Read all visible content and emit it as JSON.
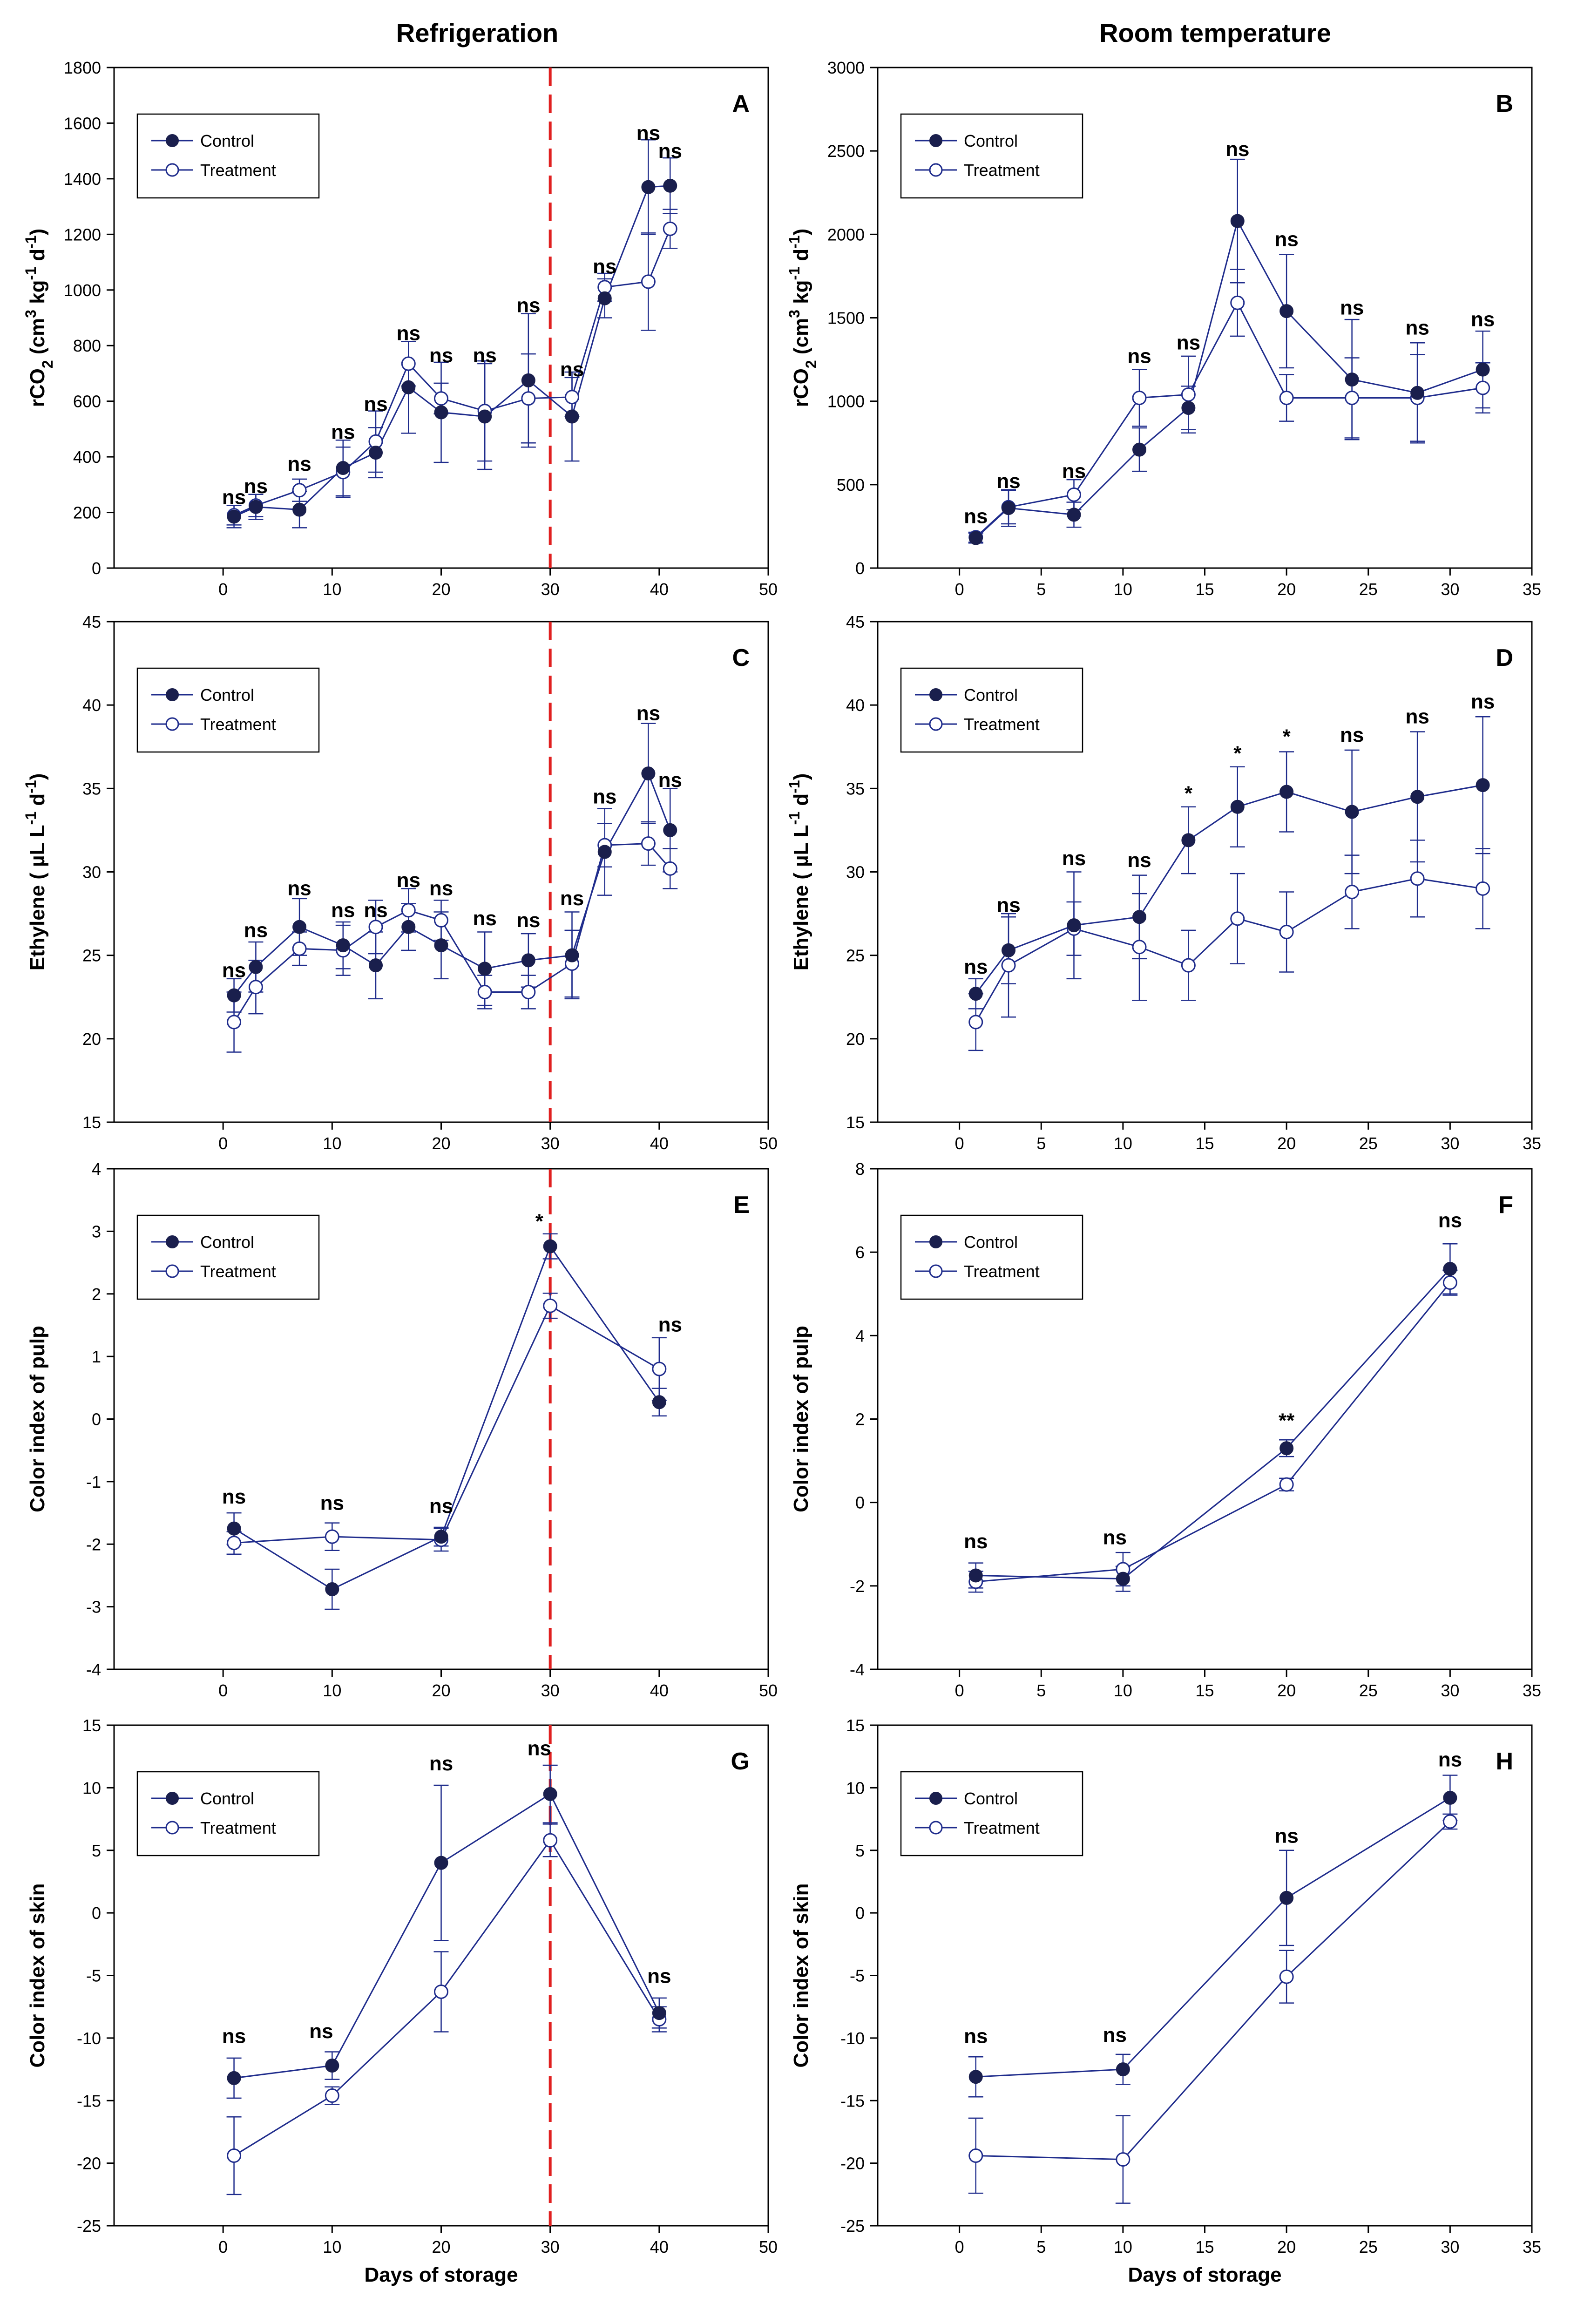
{
  "figure": {
    "col_titles": [
      "Refrigeration",
      "Room temperature"
    ],
    "xlabel": "Days of storage"
  },
  "colors": {
    "series": "#1f2c8c",
    "control_fill": "#1a1f4d",
    "cold_chain_line": "#e02020"
  },
  "chart_data": [
    {
      "type": "line",
      "panel": "A",
      "title": "A",
      "ylabel": "rCO2 (cm3 kg-1 d-1)",
      "ylabel_parts": [
        "rCO",
        "2",
        " (cm",
        "3",
        " kg",
        "-1",
        " d",
        "-1",
        ")"
      ],
      "xlim": [
        -10,
        50
      ],
      "ylim": [
        0,
        1800
      ],
      "xticks": [
        0,
        10,
        20,
        30,
        40,
        50
      ],
      "yticks": [
        0,
        200,
        400,
        600,
        800,
        1000,
        1200,
        1400,
        1600,
        1800
      ],
      "vline_x": 30,
      "legend": [
        "Control",
        "Treatment"
      ],
      "series": [
        {
          "name": "Control",
          "x": [
            1,
            3,
            7,
            11,
            14,
            17,
            20,
            24,
            28,
            32,
            35,
            39,
            41
          ],
          "y": [
            185,
            220,
            210,
            360,
            415,
            650,
            560,
            545,
            675,
            545,
            970,
            1370,
            1375
          ],
          "err": [
            40,
            45,
            65,
            100,
            90,
            165,
            180,
            190,
            240,
            160,
            70,
            170,
            100
          ]
        },
        {
          "name": "Treatment",
          "x": [
            1,
            3,
            7,
            11,
            14,
            17,
            20,
            24,
            28,
            32,
            35,
            39,
            41
          ],
          "y": [
            190,
            225,
            280,
            345,
            455,
            735,
            610,
            565,
            610,
            615,
            1010,
            1030,
            1220
          ],
          "err": [
            35,
            40,
            40,
            90,
            110,
            80,
            55,
            180,
            160,
            70,
            50,
            175,
            70
          ]
        }
      ],
      "annotations": [
        {
          "x": 1,
          "y": 230,
          "text": "ns"
        },
        {
          "x": 3,
          "y": 270,
          "text": "ns"
        },
        {
          "x": 7,
          "y": 350,
          "text": "ns"
        },
        {
          "x": 11,
          "y": 465,
          "text": "ns"
        },
        {
          "x": 14,
          "y": 565,
          "text": "ns"
        },
        {
          "x": 17,
          "y": 820,
          "text": "ns"
        },
        {
          "x": 20,
          "y": 740,
          "text": "ns"
        },
        {
          "x": 24,
          "y": 740,
          "text": "ns"
        },
        {
          "x": 28,
          "y": 920,
          "text": "ns"
        },
        {
          "x": 32,
          "y": 690,
          "text": "ns"
        },
        {
          "x": 35,
          "y": 1060,
          "text": "ns"
        },
        {
          "x": 39,
          "y": 1540,
          "text": "ns"
        },
        {
          "x": 41,
          "y": 1475,
          "text": "ns"
        }
      ]
    },
    {
      "type": "line",
      "panel": "B",
      "title": "B",
      "ylabel": "rCO2 (cm3 kg-1 d-1)",
      "ylabel_parts": [
        "rCO",
        "2",
        " (cm",
        "3",
        " kg",
        "-1",
        " d",
        "-1",
        ")"
      ],
      "xlim": [
        -5,
        35
      ],
      "ylim": [
        0,
        3000
      ],
      "xticks": [
        0,
        5,
        10,
        15,
        20,
        25,
        30,
        35
      ],
      "yticks": [
        0,
        500,
        1000,
        1500,
        2000,
        2500,
        3000
      ],
      "legend": [
        "Control",
        "Treatment"
      ],
      "series": [
        {
          "name": "Control",
          "x": [
            1,
            3,
            7,
            11,
            14,
            17,
            20,
            24,
            28,
            32
          ],
          "y": [
            180,
            360,
            320,
            710,
            960,
            2080,
            1540,
            1130,
            1050,
            1190
          ],
          "err": [
            30,
            110,
            75,
            130,
            130,
            370,
            340,
            360,
            300,
            230
          ]
        },
        {
          "name": "Treatment",
          "x": [
            1,
            3,
            7,
            11,
            14,
            17,
            20,
            24,
            28,
            32
          ],
          "y": [
            185,
            365,
            440,
            1020,
            1040,
            1590,
            1020,
            1020,
            1020,
            1080
          ],
          "err": [
            30,
            100,
            90,
            170,
            230,
            200,
            140,
            240,
            260,
            150
          ]
        }
      ],
      "annotations": [
        {
          "x": 1,
          "y": 270,
          "text": "ns"
        },
        {
          "x": 3,
          "y": 480,
          "text": "ns"
        },
        {
          "x": 7,
          "y": 540,
          "text": "ns"
        },
        {
          "x": 11,
          "y": 1230,
          "text": "ns"
        },
        {
          "x": 14,
          "y": 1310,
          "text": "ns"
        },
        {
          "x": 17,
          "y": 2470,
          "text": "ns"
        },
        {
          "x": 20,
          "y": 1930,
          "text": "ns"
        },
        {
          "x": 24,
          "y": 1520,
          "text": "ns"
        },
        {
          "x": 28,
          "y": 1400,
          "text": "ns"
        },
        {
          "x": 32,
          "y": 1450,
          "text": "ns"
        }
      ]
    },
    {
      "type": "line",
      "panel": "C",
      "title": "C",
      "ylabel": "Ethylene (µL L-1 d-1)",
      "ylabel_parts": [
        "Ethylene ( µL L",
        "-1",
        " d",
        "-1",
        ")"
      ],
      "xlim": [
        -10,
        50
      ],
      "ylim": [
        15,
        45
      ],
      "xticks": [
        0,
        10,
        20,
        30,
        40,
        50
      ],
      "yticks": [
        15,
        20,
        25,
        30,
        35,
        40,
        45
      ],
      "vline_x": 30,
      "legend": [
        "Control",
        "Treatment"
      ],
      "series": [
        {
          "name": "Control",
          "x": [
            1,
            3,
            7,
            11,
            14,
            17,
            20,
            24,
            28,
            32,
            35,
            39,
            41
          ],
          "y": [
            22.6,
            24.3,
            26.7,
            25.6,
            24.4,
            26.7,
            25.6,
            24.2,
            24.7,
            25.0,
            31.2,
            35.9,
            32.5
          ],
          "err": [
            1.0,
            1.5,
            1.7,
            1.4,
            2.0,
            1.4,
            2.0,
            2.2,
            1.6,
            2.6,
            2.6,
            3.0,
            2.5
          ]
        },
        {
          "name": "Treatment",
          "x": [
            1,
            3,
            7,
            11,
            14,
            17,
            20,
            24,
            28,
            32,
            35,
            39,
            41
          ],
          "y": [
            21.0,
            23.1,
            25.4,
            25.3,
            26.7,
            27.7,
            27.1,
            22.8,
            22.8,
            24.5,
            31.6,
            31.7,
            30.2
          ],
          "err": [
            1.8,
            1.6,
            1.0,
            1.5,
            1.6,
            1.3,
            1.2,
            1.0,
            1.0,
            2.0,
            1.3,
            1.3,
            1.2
          ]
        }
      ],
      "annotations": [
        {
          "x": 1,
          "y": 23.7,
          "text": "ns"
        },
        {
          "x": 3,
          "y": 26.1,
          "text": "ns"
        },
        {
          "x": 7,
          "y": 28.6,
          "text": "ns"
        },
        {
          "x": 11,
          "y": 27.3,
          "text": "ns"
        },
        {
          "x": 14,
          "y": 27.3,
          "text": "ns"
        },
        {
          "x": 17,
          "y": 29.1,
          "text": "ns"
        },
        {
          "x": 20,
          "y": 28.6,
          "text": "ns"
        },
        {
          "x": 24,
          "y": 26.8,
          "text": "ns"
        },
        {
          "x": 28,
          "y": 26.7,
          "text": "ns"
        },
        {
          "x": 32,
          "y": 28.0,
          "text": "ns"
        },
        {
          "x": 35,
          "y": 34.1,
          "text": "ns"
        },
        {
          "x": 39,
          "y": 39.1,
          "text": "ns"
        },
        {
          "x": 41,
          "y": 35.1,
          "text": "ns"
        }
      ]
    },
    {
      "type": "line",
      "panel": "D",
      "title": "D",
      "ylabel": "Ethylene (µL L-1 d-1)",
      "ylabel_parts": [
        "Ethylene ( µL L",
        "-1",
        " d",
        "-1",
        ")"
      ],
      "xlim": [
        -5,
        35
      ],
      "ylim": [
        15,
        45
      ],
      "xticks": [
        0,
        5,
        10,
        15,
        20,
        25,
        30,
        35
      ],
      "yticks": [
        15,
        20,
        25,
        30,
        35,
        40,
        45
      ],
      "legend": [
        "Control",
        "Treatment"
      ],
      "series": [
        {
          "name": "Control",
          "x": [
            1,
            3,
            7,
            11,
            14,
            17,
            20,
            24,
            28,
            32
          ],
          "y": [
            22.7,
            25.3,
            26.8,
            27.3,
            31.9,
            33.9,
            34.8,
            33.6,
            34.5,
            35.2
          ],
          "err": [
            0.9,
            2.0,
            3.2,
            2.5,
            2.0,
            2.4,
            2.4,
            3.7,
            3.9,
            4.1
          ]
        },
        {
          "name": "Treatment",
          "x": [
            1,
            3,
            7,
            11,
            14,
            17,
            20,
            24,
            28,
            32
          ],
          "y": [
            21.0,
            24.4,
            26.6,
            25.5,
            24.4,
            27.2,
            26.4,
            28.8,
            29.6,
            29.0
          ],
          "err": [
            1.7,
            3.1,
            1.6,
            3.2,
            2.1,
            2.7,
            2.4,
            2.2,
            2.3,
            2.4
          ]
        }
      ],
      "annotations": [
        {
          "x": 1,
          "y": 23.9,
          "text": "ns"
        },
        {
          "x": 3,
          "y": 27.6,
          "text": "ns"
        },
        {
          "x": 7,
          "y": 30.4,
          "text": "ns"
        },
        {
          "x": 11,
          "y": 30.3,
          "text": "ns"
        },
        {
          "x": 14,
          "y": 34.3,
          "text": "*"
        },
        {
          "x": 17,
          "y": 36.7,
          "text": "*"
        },
        {
          "x": 20,
          "y": 37.7,
          "text": "*"
        },
        {
          "x": 24,
          "y": 37.8,
          "text": "ns"
        },
        {
          "x": 28,
          "y": 38.9,
          "text": "ns"
        },
        {
          "x": 32,
          "y": 39.8,
          "text": "ns"
        }
      ]
    },
    {
      "type": "line",
      "panel": "E",
      "title": "E",
      "ylabel": "Color index of pulp",
      "ylabel_parts": [
        "Color index of pulp"
      ],
      "xlim": [
        -10,
        50
      ],
      "ylim": [
        -4,
        4
      ],
      "xticks": [
        0,
        10,
        20,
        30,
        40,
        50
      ],
      "yticks": [
        -4,
        -3,
        -2,
        -1,
        0,
        1,
        2,
        3,
        4
      ],
      "vline_x": 30,
      "legend": [
        "Control",
        "Treatment"
      ],
      "series": [
        {
          "name": "Control",
          "x": [
            1,
            10,
            20,
            30,
            40
          ],
          "y": [
            -1.75,
            -2.72,
            -1.88,
            2.76,
            0.27
          ],
          "err": [
            0.25,
            0.32,
            0.15,
            0.2,
            0.22
          ]
        },
        {
          "name": "Treatment",
          "x": [
            1,
            10,
            20,
            30,
            40
          ],
          "y": [
            -1.98,
            -1.88,
            -1.93,
            1.81,
            0.8
          ],
          "err": [
            0.18,
            0.22,
            0.18,
            0.2,
            0.5
          ]
        }
      ],
      "annotations": [
        {
          "x": 1,
          "y": -1.35,
          "text": "ns"
        },
        {
          "x": 10,
          "y": -1.45,
          "text": "ns"
        },
        {
          "x": 20,
          "y": -1.5,
          "text": "ns"
        },
        {
          "x": 29,
          "y": 3.05,
          "text": "*"
        },
        {
          "x": 41,
          "y": 1.4,
          "text": "ns"
        }
      ]
    },
    {
      "type": "line",
      "panel": "F",
      "title": "F",
      "ylabel": "Color index of pulp",
      "ylabel_parts": [
        "Color index of pulp"
      ],
      "xlim": [
        -5,
        35
      ],
      "ylim": [
        -4,
        8
      ],
      "xticks": [
        0,
        5,
        10,
        15,
        20,
        25,
        30,
        35
      ],
      "yticks": [
        -4,
        -2,
        0,
        2,
        4,
        6,
        8
      ],
      "legend": [
        "Control",
        "Treatment"
      ],
      "series": [
        {
          "name": "Control",
          "x": [
            1,
            10,
            20,
            30
          ],
          "y": [
            -1.75,
            -1.83,
            1.3,
            5.6
          ],
          "err": [
            0.3,
            0.3,
            0.2,
            0.6
          ]
        },
        {
          "name": "Treatment",
          "x": [
            1,
            10,
            20,
            30
          ],
          "y": [
            -1.9,
            -1.6,
            0.43,
            5.27
          ],
          "err": [
            0.25,
            0.4,
            0.15,
            0.3
          ]
        }
      ],
      "annotations": [
        {
          "x": 1,
          "y": -1.1,
          "text": "ns"
        },
        {
          "x": 9.5,
          "y": -1.0,
          "text": "ns"
        },
        {
          "x": 20,
          "y": 1.8,
          "text": "**"
        },
        {
          "x": 30,
          "y": 6.6,
          "text": "ns"
        }
      ]
    },
    {
      "type": "line",
      "panel": "G",
      "title": "G",
      "ylabel": "Color index of skin",
      "ylabel_parts": [
        "Color index of skin"
      ],
      "xlabel": "Days of storage",
      "xlim": [
        -10,
        50
      ],
      "ylim": [
        -25,
        15
      ],
      "xticks": [
        0,
        10,
        20,
        30,
        40,
        50
      ],
      "yticks": [
        -25,
        -20,
        -15,
        -10,
        -5,
        0,
        5,
        10,
        15
      ],
      "vline_x": 30,
      "legend": [
        "Control",
        "Treatment"
      ],
      "series": [
        {
          "name": "Control",
          "x": [
            1,
            10,
            20,
            30,
            40
          ],
          "y": [
            -13.2,
            -12.2,
            4.0,
            9.5,
            -8.0
          ],
          "err": [
            1.6,
            1.1,
            6.2,
            2.3,
            1.2
          ]
        },
        {
          "name": "Treatment",
          "x": [
            1,
            10,
            20,
            30,
            40
          ],
          "y": [
            -19.4,
            -14.6,
            -6.3,
            5.8,
            -8.5
          ],
          "err": [
            3.1,
            0.7,
            3.2,
            1.3,
            1.0
          ]
        }
      ],
      "annotations": [
        {
          "x": 1,
          "y": -10.4,
          "text": "ns"
        },
        {
          "x": 9,
          "y": -10.0,
          "text": "ns"
        },
        {
          "x": 20,
          "y": 11.4,
          "text": "ns"
        },
        {
          "x": 29,
          "y": 12.6,
          "text": "ns"
        },
        {
          "x": 40,
          "y": -5.6,
          "text": "ns"
        }
      ]
    },
    {
      "type": "line",
      "panel": "H",
      "title": "H",
      "ylabel": "Color index of skin",
      "ylabel_parts": [
        "Color index of skin"
      ],
      "xlabel": "Days of storage",
      "xlim": [
        -5,
        35
      ],
      "ylim": [
        -25,
        15
      ],
      "xticks": [
        0,
        5,
        10,
        15,
        20,
        25,
        30,
        35
      ],
      "yticks": [
        -25,
        -20,
        -15,
        -10,
        -5,
        0,
        5,
        10,
        15
      ],
      "legend": [
        "Control",
        "Treatment"
      ],
      "series": [
        {
          "name": "Control",
          "x": [
            1,
            10,
            20,
            30
          ],
          "y": [
            -13.1,
            -12.5,
            1.2,
            9.2
          ],
          "err": [
            1.6,
            1.2,
            3.8,
            1.8
          ]
        },
        {
          "name": "Treatment",
          "x": [
            1,
            10,
            20,
            30
          ],
          "y": [
            -19.4,
            -19.7,
            -5.1,
            7.3
          ],
          "err": [
            3.0,
            3.5,
            2.1,
            0.6
          ]
        }
      ],
      "annotations": [
        {
          "x": 1,
          "y": -10.4,
          "text": "ns"
        },
        {
          "x": 9.5,
          "y": -10.3,
          "text": "ns"
        },
        {
          "x": 20,
          "y": 5.6,
          "text": "ns"
        },
        {
          "x": 30,
          "y": 11.7,
          "text": "ns"
        }
      ]
    }
  ]
}
